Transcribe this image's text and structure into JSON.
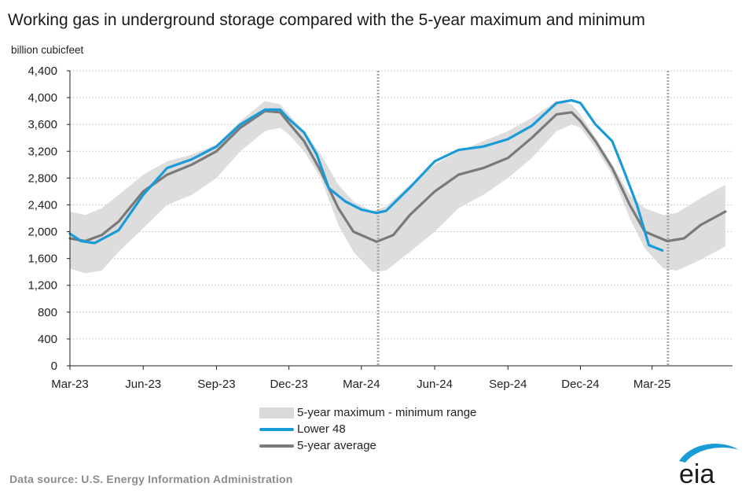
{
  "title": "Working gas in underground  storage compared with the 5-year maximum and minimum",
  "source": "Data source:  U.S. Energy Information Administration",
  "logo_text": "eia",
  "legend": {
    "range": "5-year maximum - minimum range",
    "lower48": "Lower 48",
    "average": "5-year average"
  },
  "colors": {
    "lower48": "#1a9bd7",
    "average": "#7a7a7a",
    "range": "#d9d9d9",
    "logo": "#1a9bd7"
  },
  "chart_data": {
    "type": "line",
    "title": "Working gas in underground  storage compared with the 5-year maximum and minimum",
    "ylabel": "billion cubicfeet",
    "xlabel": "",
    "ylim": [
      0,
      4400
    ],
    "xlim": [
      "2023-03-01",
      "2025-06-10"
    ],
    "yticks": [
      "0",
      "400",
      "800",
      "1,200",
      "1,600",
      "2,000",
      "2,400",
      "2,800",
      "3,200",
      "3,600",
      "4,000",
      "4,400"
    ],
    "yticks_values": [
      0,
      400,
      800,
      1200,
      1600,
      2000,
      2400,
      2800,
      3200,
      3600,
      4000,
      4400
    ],
    "xticks": [
      "Mar-23",
      "Jun-23",
      "Sep-23",
      "Dec-23",
      "Mar-24",
      "Jun-24",
      "Sep-24",
      "Dec-24",
      "Mar-25"
    ],
    "xticks_dates": [
      "2023-03-01",
      "2023-06-01",
      "2023-09-01",
      "2023-12-01",
      "2024-03-01",
      "2024-06-01",
      "2024-09-01",
      "2024-12-01",
      "2025-03-01"
    ],
    "grid": "horizontal",
    "vertical_markers": [
      "2024-03-22",
      "2025-03-21"
    ],
    "legend_position": "bottom",
    "series": [
      {
        "name": "5-year maximum - minimum range",
        "kind": "band",
        "x": [
          "2023-03-01",
          "2023-03-20",
          "2023-04-10",
          "2023-05-01",
          "2023-06-01",
          "2023-07-01",
          "2023-08-01",
          "2023-09-01",
          "2023-10-01",
          "2023-11-01",
          "2023-11-20",
          "2023-12-01",
          "2023-12-20",
          "2024-01-10",
          "2024-02-01",
          "2024-02-20",
          "2024-03-15",
          "2024-04-01",
          "2024-05-01",
          "2024-06-01",
          "2024-07-01",
          "2024-08-01",
          "2024-09-01",
          "2024-10-01",
          "2024-11-01",
          "2024-11-20",
          "2024-12-01",
          "2024-12-20",
          "2025-01-10",
          "2025-02-01",
          "2025-02-20",
          "2025-03-15",
          "2025-04-01",
          "2025-05-01",
          "2025-06-01"
        ],
        "upper": [
          2300,
          2250,
          2350,
          2550,
          2850,
          3050,
          3150,
          3300,
          3650,
          3950,
          3900,
          3750,
          3500,
          3150,
          2700,
          2450,
          2300,
          2380,
          2700,
          3000,
          3200,
          3350,
          3500,
          3700,
          3950,
          3900,
          3750,
          3400,
          3000,
          2550,
          2350,
          2250,
          2280,
          2500,
          2700
        ],
        "lower": [
          1450,
          1380,
          1420,
          1700,
          2050,
          2400,
          2550,
          2800,
          3200,
          3500,
          3550,
          3450,
          3200,
          2800,
          2100,
          1700,
          1400,
          1420,
          1700,
          2000,
          2350,
          2550,
          2800,
          3100,
          3500,
          3600,
          3550,
          3250,
          2850,
          2200,
          1750,
          1450,
          1420,
          1580,
          1780
        ]
      },
      {
        "name": "Lower 48",
        "kind": "line",
        "color": "#1a9bd7",
        "x": [
          "2023-03-01",
          "2023-03-15",
          "2023-04-01",
          "2023-05-01",
          "2023-06-01",
          "2023-07-01",
          "2023-08-01",
          "2023-09-01",
          "2023-10-01",
          "2023-11-01",
          "2023-11-20",
          "2023-12-01",
          "2023-12-20",
          "2024-01-05",
          "2024-01-20",
          "2024-02-10",
          "2024-03-01",
          "2024-03-20",
          "2024-04-01",
          "2024-05-01",
          "2024-06-01",
          "2024-07-01",
          "2024-08-01",
          "2024-09-01",
          "2024-10-01",
          "2024-11-01",
          "2024-11-20",
          "2024-12-01",
          "2024-12-20",
          "2025-01-10",
          "2025-01-25",
          "2025-02-10",
          "2025-02-25",
          "2025-03-14"
        ],
        "values": [
          1970,
          1860,
          1830,
          2020,
          2550,
          2950,
          3080,
          3270,
          3600,
          3820,
          3820,
          3680,
          3480,
          3150,
          2650,
          2450,
          2330,
          2280,
          2310,
          2660,
          3050,
          3220,
          3270,
          3380,
          3580,
          3920,
          3960,
          3920,
          3600,
          3350,
          2900,
          2400,
          1800,
          1720
        ]
      },
      {
        "name": "5-year average",
        "kind": "line",
        "color": "#7a7a7a",
        "x": [
          "2023-03-01",
          "2023-03-20",
          "2023-04-10",
          "2023-05-01",
          "2023-06-01",
          "2023-07-01",
          "2023-08-01",
          "2023-09-01",
          "2023-10-01",
          "2023-11-01",
          "2023-11-20",
          "2023-12-01",
          "2023-12-20",
          "2024-01-10",
          "2024-02-01",
          "2024-02-20",
          "2024-03-20",
          "2024-04-10",
          "2024-05-01",
          "2024-06-01",
          "2024-07-01",
          "2024-08-01",
          "2024-09-01",
          "2024-10-01",
          "2024-11-01",
          "2024-11-20",
          "2024-12-01",
          "2024-12-20",
          "2025-01-10",
          "2025-02-01",
          "2025-02-20",
          "2025-03-20",
          "2025-04-10",
          "2025-05-01",
          "2025-06-01"
        ],
        "values": [
          1900,
          1860,
          1950,
          2150,
          2600,
          2850,
          3000,
          3200,
          3550,
          3800,
          3780,
          3620,
          3350,
          2900,
          2350,
          2000,
          1850,
          1950,
          2250,
          2600,
          2850,
          2950,
          3100,
          3400,
          3750,
          3780,
          3650,
          3350,
          2950,
          2400,
          2000,
          1860,
          1900,
          2100,
          2300
        ]
      }
    ]
  }
}
